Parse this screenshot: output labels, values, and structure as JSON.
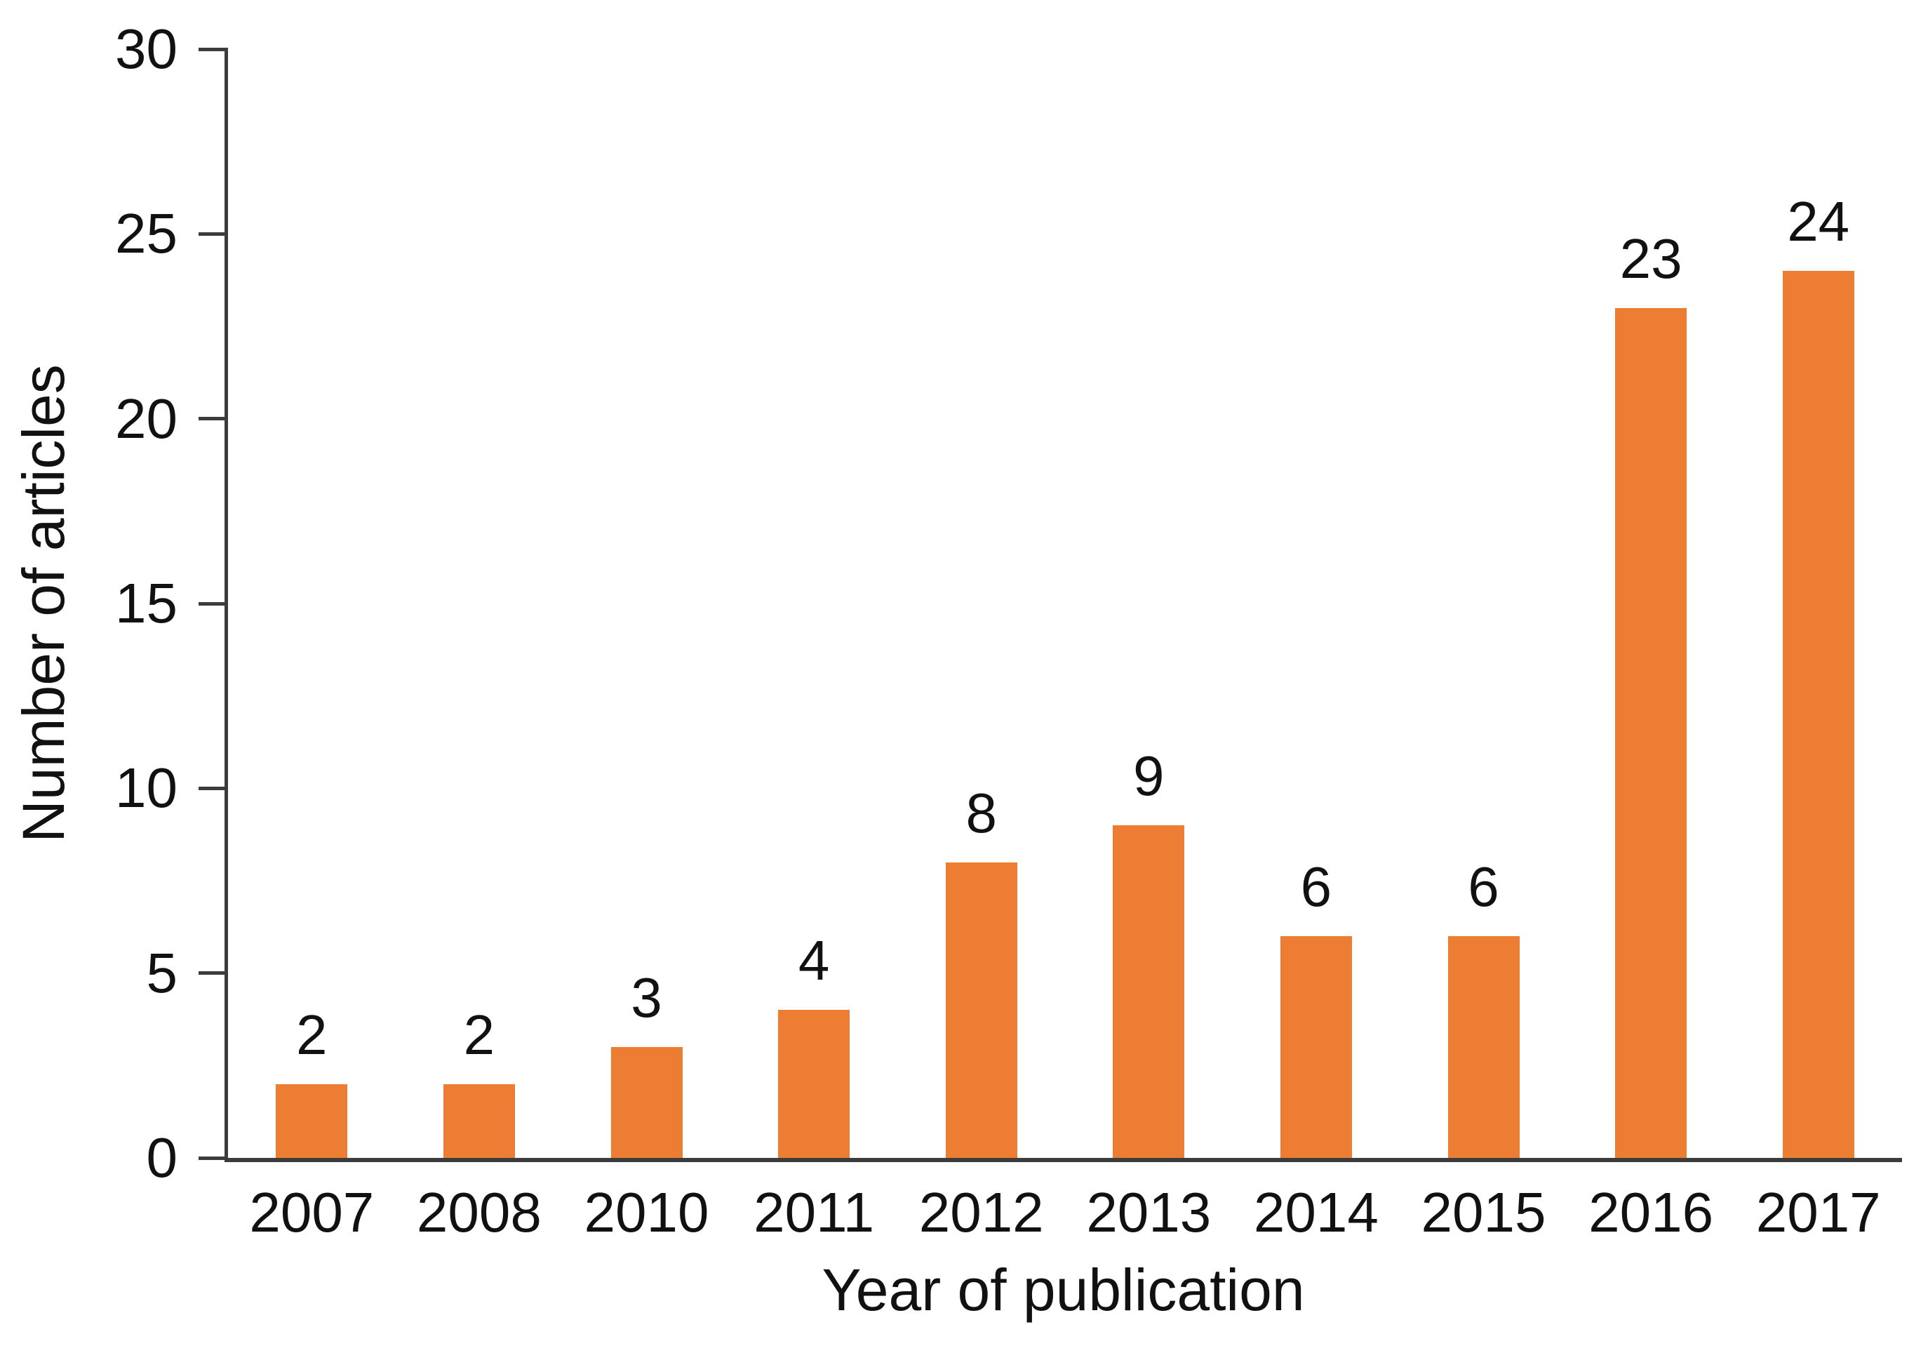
{
  "chart_data": {
    "type": "bar",
    "title": "",
    "xlabel": "Year of publication",
    "ylabel": "Number of articles",
    "categories": [
      "2007",
      "2008",
      "2010",
      "2011",
      "2012",
      "2013",
      "2014",
      "2015",
      "2016",
      "2017"
    ],
    "values": [
      2,
      2,
      3,
      4,
      8,
      9,
      6,
      6,
      23,
      24
    ],
    "value_labels": [
      "2",
      "2",
      "3",
      "4",
      "8",
      "9",
      "6",
      "6",
      "23",
      "24"
    ],
    "ylim": [
      0,
      30
    ],
    "yticks": [
      0,
      5,
      10,
      15,
      20,
      25,
      30
    ],
    "grid": false,
    "legend": null,
    "colors": {
      "bar": "#EC7D33",
      "axis": "#3C3C3C",
      "text": "#111111",
      "background": "#FFFFFF"
    }
  }
}
